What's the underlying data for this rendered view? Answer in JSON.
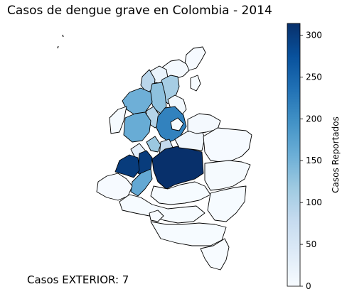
{
  "chart_data": {
    "type": "choropleth",
    "title": "Casos de dengue grave en Colombia - 2014",
    "colorbar": {
      "label": "Casos Reportados",
      "min": 0,
      "max": 314,
      "ticks": [
        0,
        50,
        100,
        150,
        200,
        250,
        300
      ],
      "colormap": "Blues",
      "stops": [
        "#f7fbff",
        "#deebf7",
        "#c6dbef",
        "#9ecae1",
        "#6baed6",
        "#4292c6",
        "#2171b5",
        "#08519c",
        "#08306b"
      ]
    },
    "regions": [
      {
        "value": 2
      },
      {
        "value": 5
      },
      {
        "value": 20
      },
      {
        "value": 90
      },
      {
        "value": 110
      },
      {
        "value": 130
      },
      {
        "value": 8
      },
      {
        "value": 155
      },
      {
        "value": 95
      },
      {
        "value": 160
      },
      {
        "value": 215
      },
      {
        "value": 3
      },
      {
        "value": 120
      },
      {
        "value": 80
      },
      {
        "value": 30
      },
      {
        "value": 300
      },
      {
        "value": 314
      },
      {
        "value": 300
      },
      {
        "value": 165
      },
      {
        "value": 10
      },
      {
        "value": 4
      },
      {
        "value": 2
      },
      {
        "value": 3
      },
      {
        "value": 1
      },
      {
        "value": 1
      },
      {
        "value": 2
      },
      {
        "value": 1
      },
      {
        "value": 1
      },
      {
        "value": 0
      },
      {
        "value": 0
      },
      {
        "value": 1
      },
      {
        "value": 0
      }
    ],
    "note": "Casos EXTERIOR: 7"
  }
}
